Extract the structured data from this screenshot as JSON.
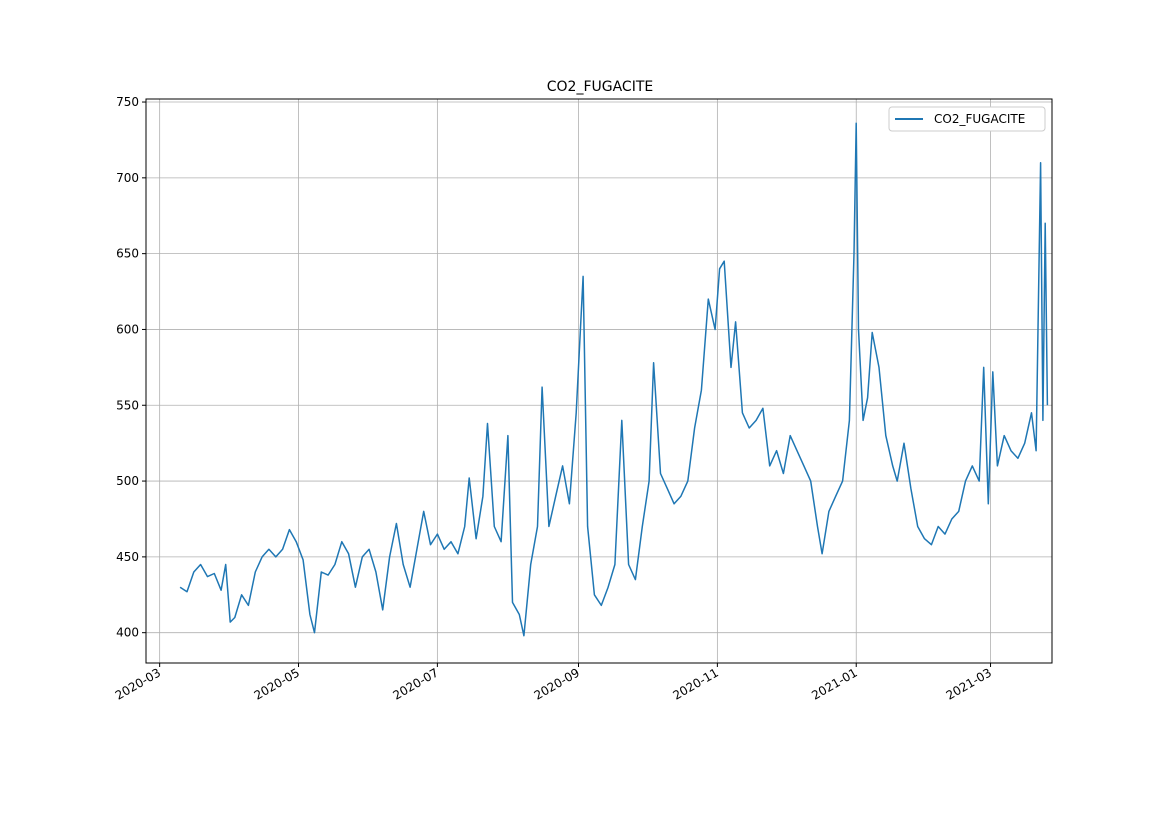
{
  "chart_data": {
    "type": "line",
    "title": "CO2_FUGACITE",
    "xlabel": "",
    "ylabel": "",
    "x_axis_type": "date",
    "xlim": [
      "2020-02-24",
      "2021-03-28"
    ],
    "ylim": [
      380,
      752
    ],
    "grid": true,
    "legend_position": "top-right",
    "x_ticks": [
      "2020-03-01",
      "2020-05-01",
      "2020-07-01",
      "2020-09-01",
      "2020-11-01",
      "2021-01-01",
      "2021-03-01"
    ],
    "x_tick_labels": [
      "2020-03",
      "2020-05",
      "2020-07",
      "2020-09",
      "2020-11",
      "2021-01",
      "2021-03"
    ],
    "y_ticks": [
      400,
      450,
      500,
      550,
      600,
      650,
      700,
      750
    ],
    "y_tick_labels": [
      "400",
      "450",
      "500",
      "550",
      "600",
      "650",
      "700",
      "750"
    ],
    "series": [
      {
        "name": "CO2_FUGACITE",
        "color": "#1f77b4",
        "points": [
          [
            "2020-03-10",
            430
          ],
          [
            "2020-03-13",
            427
          ],
          [
            "2020-03-16",
            440
          ],
          [
            "2020-03-19",
            445
          ],
          [
            "2020-03-22",
            437
          ],
          [
            "2020-03-25",
            439
          ],
          [
            "2020-03-28",
            428
          ],
          [
            "2020-03-30",
            445
          ],
          [
            "2020-04-01",
            407
          ],
          [
            "2020-04-03",
            410
          ],
          [
            "2020-04-06",
            425
          ],
          [
            "2020-04-09",
            418
          ],
          [
            "2020-04-12",
            440
          ],
          [
            "2020-04-15",
            450
          ],
          [
            "2020-04-18",
            455
          ],
          [
            "2020-04-21",
            450
          ],
          [
            "2020-04-24",
            455
          ],
          [
            "2020-04-27",
            468
          ],
          [
            "2020-04-30",
            460
          ],
          [
            "2020-05-03",
            448
          ],
          [
            "2020-05-06",
            412
          ],
          [
            "2020-05-08",
            400
          ],
          [
            "2020-05-11",
            440
          ],
          [
            "2020-05-14",
            438
          ],
          [
            "2020-05-17",
            445
          ],
          [
            "2020-05-20",
            460
          ],
          [
            "2020-05-23",
            452
          ],
          [
            "2020-05-26",
            430
          ],
          [
            "2020-05-29",
            450
          ],
          [
            "2020-06-01",
            455
          ],
          [
            "2020-06-04",
            440
          ],
          [
            "2020-06-07",
            415
          ],
          [
            "2020-06-10",
            450
          ],
          [
            "2020-06-13",
            472
          ],
          [
            "2020-06-16",
            445
          ],
          [
            "2020-06-19",
            430
          ],
          [
            "2020-06-22",
            455
          ],
          [
            "2020-06-25",
            480
          ],
          [
            "2020-06-28",
            458
          ],
          [
            "2020-07-01",
            465
          ],
          [
            "2020-07-04",
            455
          ],
          [
            "2020-07-07",
            460
          ],
          [
            "2020-07-10",
            452
          ],
          [
            "2020-07-13",
            470
          ],
          [
            "2020-07-15",
            502
          ],
          [
            "2020-07-18",
            462
          ],
          [
            "2020-07-21",
            490
          ],
          [
            "2020-07-23",
            538
          ],
          [
            "2020-07-26",
            470
          ],
          [
            "2020-07-29",
            460
          ],
          [
            "2020-08-01",
            530
          ],
          [
            "2020-08-03",
            420
          ],
          [
            "2020-08-06",
            412
          ],
          [
            "2020-08-08",
            398
          ],
          [
            "2020-08-11",
            445
          ],
          [
            "2020-08-14",
            470
          ],
          [
            "2020-08-16",
            562
          ],
          [
            "2020-08-19",
            470
          ],
          [
            "2020-08-22",
            490
          ],
          [
            "2020-08-25",
            510
          ],
          [
            "2020-08-28",
            485
          ],
          [
            "2020-08-31",
            545
          ],
          [
            "2020-09-03",
            635
          ],
          [
            "2020-09-05",
            470
          ],
          [
            "2020-09-08",
            425
          ],
          [
            "2020-09-11",
            418
          ],
          [
            "2020-09-14",
            430
          ],
          [
            "2020-09-17",
            445
          ],
          [
            "2020-09-20",
            540
          ],
          [
            "2020-09-23",
            445
          ],
          [
            "2020-09-26",
            435
          ],
          [
            "2020-09-29",
            470
          ],
          [
            "2020-10-02",
            500
          ],
          [
            "2020-10-04",
            578
          ],
          [
            "2020-10-07",
            505
          ],
          [
            "2020-10-10",
            495
          ],
          [
            "2020-10-13",
            485
          ],
          [
            "2020-10-16",
            490
          ],
          [
            "2020-10-19",
            500
          ],
          [
            "2020-10-22",
            535
          ],
          [
            "2020-10-25",
            560
          ],
          [
            "2020-10-28",
            620
          ],
          [
            "2020-10-31",
            600
          ],
          [
            "2020-11-02",
            640
          ],
          [
            "2020-11-04",
            645
          ],
          [
            "2020-11-07",
            575
          ],
          [
            "2020-11-09",
            605
          ],
          [
            "2020-11-12",
            545
          ],
          [
            "2020-11-15",
            535
          ],
          [
            "2020-11-18",
            540
          ],
          [
            "2020-11-21",
            548
          ],
          [
            "2020-11-24",
            510
          ],
          [
            "2020-11-27",
            520
          ],
          [
            "2020-11-30",
            505
          ],
          [
            "2020-12-03",
            530
          ],
          [
            "2020-12-06",
            520
          ],
          [
            "2020-12-09",
            510
          ],
          [
            "2020-12-12",
            500
          ],
          [
            "2020-12-15",
            470
          ],
          [
            "2020-12-17",
            452
          ],
          [
            "2020-12-20",
            480
          ],
          [
            "2020-12-23",
            490
          ],
          [
            "2020-12-26",
            500
          ],
          [
            "2020-12-29",
            540
          ],
          [
            "2020-12-31",
            650
          ],
          [
            "2021-01-01",
            736
          ],
          [
            "2021-01-02",
            600
          ],
          [
            "2021-01-04",
            540
          ],
          [
            "2021-01-06",
            555
          ],
          [
            "2021-01-08",
            598
          ],
          [
            "2021-01-11",
            575
          ],
          [
            "2021-01-14",
            530
          ],
          [
            "2021-01-17",
            510
          ],
          [
            "2021-01-19",
            500
          ],
          [
            "2021-01-22",
            525
          ],
          [
            "2021-01-25",
            495
          ],
          [
            "2021-01-28",
            470
          ],
          [
            "2021-01-31",
            462
          ],
          [
            "2021-02-03",
            458
          ],
          [
            "2021-02-06",
            470
          ],
          [
            "2021-02-09",
            465
          ],
          [
            "2021-02-12",
            475
          ],
          [
            "2021-02-15",
            480
          ],
          [
            "2021-02-18",
            500
          ],
          [
            "2021-02-21",
            510
          ],
          [
            "2021-02-24",
            500
          ],
          [
            "2021-02-26",
            575
          ],
          [
            "2021-02-28",
            485
          ],
          [
            "2021-03-02",
            572
          ],
          [
            "2021-03-04",
            510
          ],
          [
            "2021-03-07",
            530
          ],
          [
            "2021-03-10",
            520
          ],
          [
            "2021-03-13",
            515
          ],
          [
            "2021-03-16",
            525
          ],
          [
            "2021-03-19",
            545
          ],
          [
            "2021-03-21",
            520
          ],
          [
            "2021-03-23",
            710
          ],
          [
            "2021-03-24",
            540
          ],
          [
            "2021-03-25",
            670
          ],
          [
            "2021-03-26",
            550
          ]
        ]
      }
    ]
  }
}
